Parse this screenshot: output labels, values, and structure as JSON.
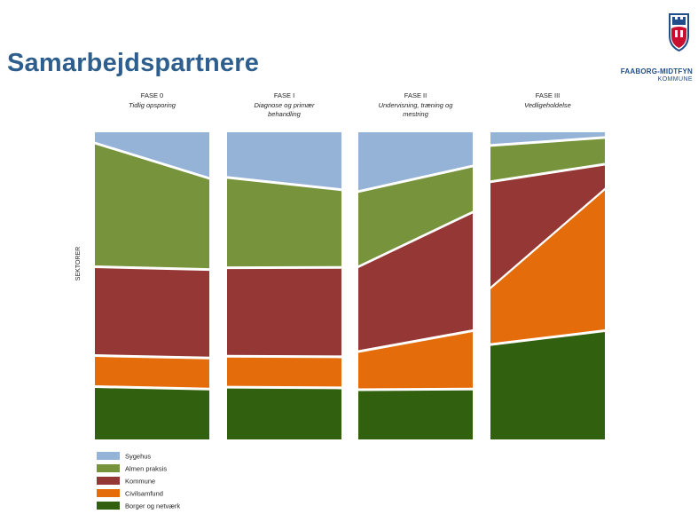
{
  "page": {
    "title": "Samarbejdspartnere",
    "logo_name": "FAABORG-MIDTFYN",
    "logo_sub": "KOMMUNE"
  },
  "chart_data": {
    "type": "area",
    "ylabel": "SEKTORER",
    "ylim": [
      0,
      100
    ],
    "phases": [
      {
        "name": "FASE 0",
        "subtitle": [
          "Tidlig opsporing"
        ]
      },
      {
        "name": "FASE I",
        "subtitle": [
          "Diagnose og primær",
          "behandling"
        ]
      },
      {
        "name": "FASE II",
        "subtitle": [
          "Undervisning, træning og",
          "mestring"
        ]
      },
      {
        "name": "FASE III",
        "subtitle": [
          "Vedligeholdelse"
        ]
      }
    ],
    "series": [
      {
        "name": "Sygehus",
        "color": "#95b3d7",
        "left": [
          3.5,
          14.7,
          19.3,
          4.3
        ],
        "right": [
          15.0,
          18.7,
          11.0,
          1.7
        ]
      },
      {
        "name": "Almen praksis",
        "color": "#77933c",
        "left": [
          40.3,
          29.4,
          24.5,
          11.8
        ],
        "right": [
          29.7,
          25.3,
          15.0,
          8.7
        ]
      },
      {
        "name": "Kommune",
        "color": "#953735",
        "left": [
          28.9,
          28.8,
          27.6,
          34.6
        ],
        "right": [
          28.8,
          29.1,
          38.6,
          8.1
        ]
      },
      {
        "name": "Civilsamfund",
        "color": "#e46c0a",
        "left": [
          10.1,
          10.1,
          12.4,
          18.4
        ],
        "right": [
          10.1,
          10.1,
          19.0,
          46.1
        ]
      },
      {
        "name": "Borger og netværk",
        "color": "#31600f",
        "left": [
          17.2,
          17.0,
          16.2,
          30.9
        ],
        "right": [
          16.4,
          16.8,
          16.4,
          35.4
        ]
      }
    ]
  }
}
